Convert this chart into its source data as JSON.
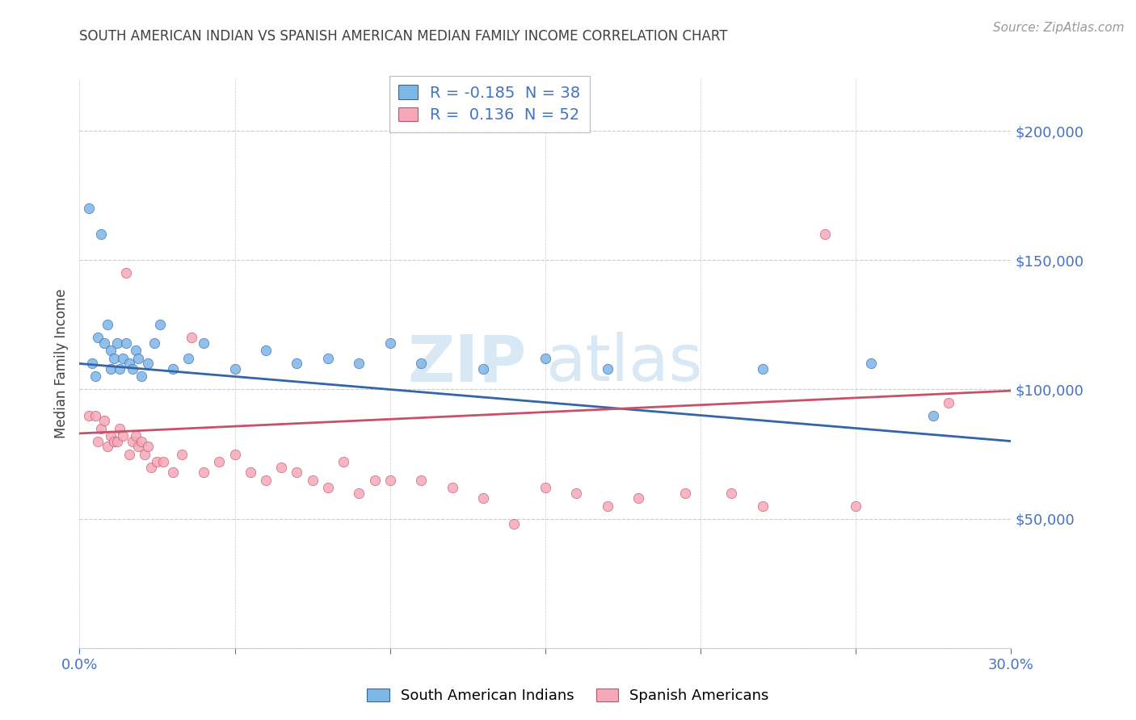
{
  "title": "SOUTH AMERICAN INDIAN VS SPANISH AMERICAN MEDIAN FAMILY INCOME CORRELATION CHART",
  "source_text": "Source: ZipAtlas.com",
  "watermark_zip": "ZIP",
  "watermark_atlas": "atlas",
  "ylabel": "Median Family Income",
  "xlim": [
    0.0,
    0.3
  ],
  "ylim": [
    0,
    220000
  ],
  "yticks": [
    0,
    50000,
    100000,
    150000,
    200000
  ],
  "ytick_labels": [
    "",
    "$50,000",
    "$100,000",
    "$150,000",
    "$200,000"
  ],
  "xticks": [
    0.0,
    0.05,
    0.1,
    0.15,
    0.2,
    0.25,
    0.3
  ],
  "blue_color": "#7EB6E8",
  "pink_color": "#F4A8B8",
  "blue_line_color": "#3465A8",
  "pink_line_color": "#C8506A",
  "axis_label_color": "#4472C4",
  "title_color": "#404040",
  "grid_color": "#CCCCCC",
  "legend1_r": "-0.185",
  "legend1_n": "38",
  "legend2_r": "0.136",
  "legend2_n": "52",
  "blue_scatter_x": [
    0.003,
    0.004,
    0.005,
    0.006,
    0.007,
    0.008,
    0.009,
    0.01,
    0.01,
    0.011,
    0.012,
    0.013,
    0.014,
    0.015,
    0.016,
    0.017,
    0.018,
    0.019,
    0.02,
    0.022,
    0.024,
    0.026,
    0.03,
    0.035,
    0.04,
    0.05,
    0.06,
    0.07,
    0.08,
    0.09,
    0.1,
    0.11,
    0.13,
    0.15,
    0.17,
    0.22,
    0.255,
    0.275
  ],
  "blue_scatter_y": [
    170000,
    110000,
    105000,
    120000,
    160000,
    118000,
    125000,
    115000,
    108000,
    112000,
    118000,
    108000,
    112000,
    118000,
    110000,
    108000,
    115000,
    112000,
    105000,
    110000,
    118000,
    125000,
    108000,
    112000,
    118000,
    108000,
    115000,
    110000,
    112000,
    110000,
    118000,
    110000,
    108000,
    112000,
    108000,
    108000,
    110000,
    90000
  ],
  "pink_scatter_x": [
    0.003,
    0.005,
    0.006,
    0.007,
    0.008,
    0.009,
    0.01,
    0.011,
    0.012,
    0.013,
    0.014,
    0.015,
    0.016,
    0.017,
    0.018,
    0.019,
    0.02,
    0.021,
    0.022,
    0.023,
    0.025,
    0.027,
    0.03,
    0.033,
    0.036,
    0.04,
    0.045,
    0.05,
    0.055,
    0.06,
    0.065,
    0.07,
    0.075,
    0.08,
    0.085,
    0.09,
    0.095,
    0.1,
    0.11,
    0.12,
    0.13,
    0.14,
    0.15,
    0.16,
    0.17,
    0.18,
    0.195,
    0.21,
    0.22,
    0.24,
    0.25,
    0.28
  ],
  "pink_scatter_y": [
    90000,
    90000,
    80000,
    85000,
    88000,
    78000,
    82000,
    80000,
    80000,
    85000,
    82000,
    145000,
    75000,
    80000,
    82000,
    78000,
    80000,
    75000,
    78000,
    70000,
    72000,
    72000,
    68000,
    75000,
    120000,
    68000,
    72000,
    75000,
    68000,
    65000,
    70000,
    68000,
    65000,
    62000,
    72000,
    60000,
    65000,
    65000,
    65000,
    62000,
    58000,
    48000,
    62000,
    60000,
    55000,
    58000,
    60000,
    60000,
    55000,
    160000,
    55000,
    95000
  ]
}
